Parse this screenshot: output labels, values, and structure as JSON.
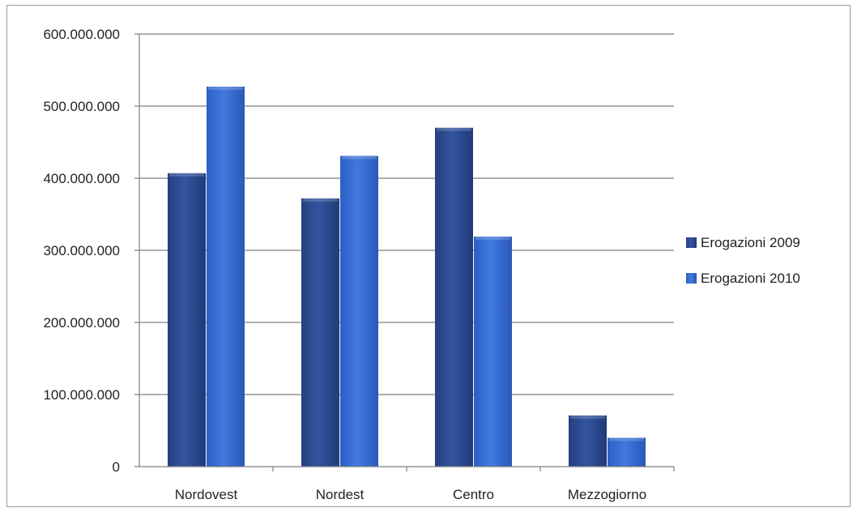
{
  "chart_data": {
    "type": "bar",
    "title": "",
    "xlabel": "",
    "ylabel": "",
    "categories": [
      "Nordovest",
      "Nordest",
      "Centro",
      "Mezzogiorno"
    ],
    "series": [
      {
        "name": "Erogazioni 2009",
        "values": [
          407000000,
          372000000,
          470000000,
          71000000
        ],
        "color": "#2f4f9e"
      },
      {
        "name": "Erogazioni 2010",
        "values": [
          527000000,
          431000000,
          319000000,
          40000000
        ],
        "color": "#3a6fd6"
      }
    ],
    "ylim": [
      0,
      600000000
    ],
    "yticks": [
      {
        "value": 0,
        "label": "0"
      },
      {
        "value": 100000000,
        "label": "100.000.000"
      },
      {
        "value": 200000000,
        "label": "200.000.000"
      },
      {
        "value": 300000000,
        "label": "300.000.000"
      },
      {
        "value": 400000000,
        "label": "400.000.000"
      },
      {
        "value": 500000000,
        "label": "500.000.000"
      },
      {
        "value": 600000000,
        "label": "600.000.000"
      }
    ],
    "grid": true,
    "legend_position": "right"
  }
}
